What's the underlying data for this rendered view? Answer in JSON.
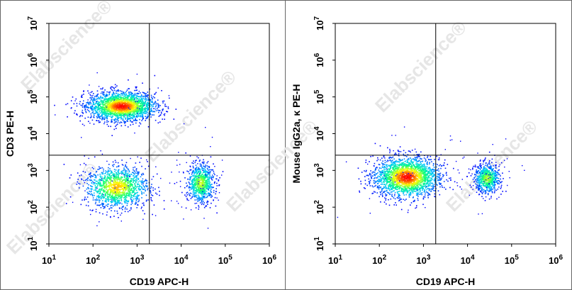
{
  "watermark": "Elabscience®",
  "chart_data": [
    {
      "type": "scatter",
      "subtype": "flow-cytometry-density-dot-plot",
      "xlabel": "CD19 APC-H",
      "ylabel": "CD3 PE-H",
      "xscale": "log",
      "yscale": "log",
      "xlim": [
        10,
        1000000
      ],
      "ylim": [
        10,
        10000000
      ],
      "x_ticks": [
        "10^1",
        "10^2",
        "10^3",
        "10^4",
        "10^5",
        "10^6"
      ],
      "y_ticks": [
        "10^1",
        "10^2",
        "10^3",
        "10^4",
        "10^5",
        "10^6",
        "10^7"
      ],
      "quadrant_gate": {
        "x": 1900,
        "y": 2600
      },
      "populations": [
        {
          "center_x": 450,
          "center_y": 55000,
          "spread_x_log": 0.36,
          "spread_y_log": 0.18,
          "relative_density": 1.0
        },
        {
          "center_x": 350,
          "center_y": 350,
          "spread_x_log": 0.33,
          "spread_y_log": 0.26,
          "relative_density": 0.6
        },
        {
          "center_x": 28000,
          "center_y": 450,
          "spread_x_log": 0.14,
          "spread_y_log": 0.24,
          "relative_density": 0.35
        }
      ],
      "colormap": [
        "#0000ff",
        "#00c8ff",
        "#00ff80",
        "#ffff00",
        "#ff0000"
      ]
    },
    {
      "type": "scatter",
      "subtype": "flow-cytometry-density-dot-plot",
      "xlabel": "CD19 APC-H",
      "ylabel": "Mouse IgG2a, κ  PE-H",
      "xscale": "log",
      "yscale": "log",
      "xlim": [
        10,
        1000000
      ],
      "ylim": [
        10,
        10000000
      ],
      "x_ticks": [
        "10^1",
        "10^2",
        "10^3",
        "10^4",
        "10^5",
        "10^6"
      ],
      "y_ticks": [
        "10^1",
        "10^2",
        "10^3",
        "10^4",
        "10^5",
        "10^6",
        "10^7"
      ],
      "quadrant_gate": {
        "x": 1900,
        "y": 2600
      },
      "populations": [
        {
          "center_x": 420,
          "center_y": 650,
          "spread_x_log": 0.34,
          "spread_y_log": 0.25,
          "relative_density": 1.0
        },
        {
          "center_x": 28000,
          "center_y": 600,
          "spread_x_log": 0.13,
          "spread_y_log": 0.18,
          "relative_density": 0.3
        }
      ],
      "colormap": [
        "#0000ff",
        "#00c8ff",
        "#00ff80",
        "#ffff00",
        "#ff0000"
      ]
    }
  ]
}
